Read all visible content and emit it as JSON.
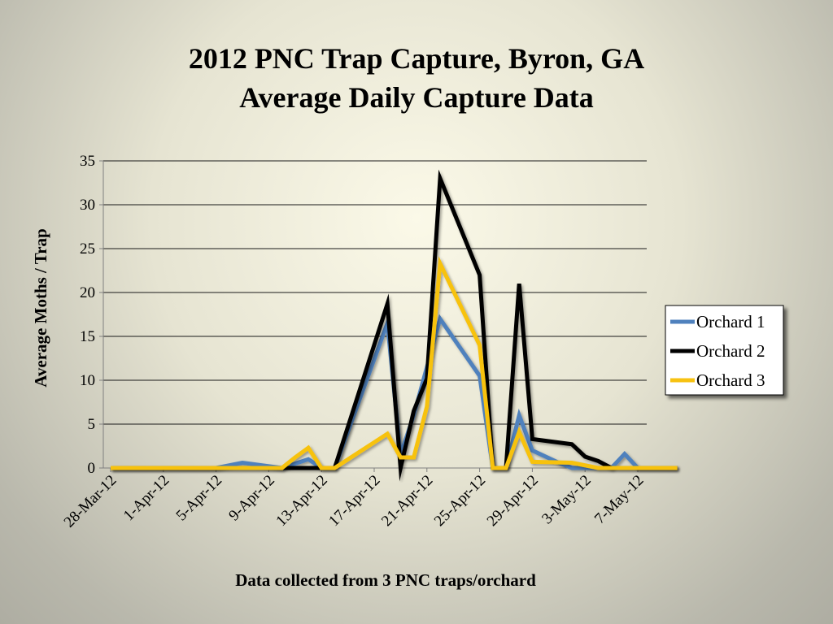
{
  "chart_data": {
    "type": "line",
    "title": "2012 PNC Trap Capture, Byron, GA",
    "subtitle": "Average Daily Capture Data",
    "xlabel": "Data collected from 3 PNC traps/orchard",
    "ylabel": "Average Moths / Trap",
    "ylim": [
      0,
      35
    ],
    "yticks": [
      0,
      5,
      10,
      15,
      20,
      25,
      30,
      35
    ],
    "xlim": [
      "2012-03-28",
      "2012-05-09"
    ],
    "xticks": [
      "28-Mar-12",
      "1-Apr-12",
      "5-Apr-12",
      "9-Apr-12",
      "13-Apr-12",
      "17-Apr-12",
      "21-Apr-12",
      "25-Apr-12",
      "29-Apr-12",
      "3-May-12",
      "7-May-12"
    ],
    "grid": true,
    "legend": "right",
    "series": [
      {
        "name": "Orchard 1",
        "color": "#4f81bd",
        "points": [
          [
            "2012-03-28",
            0
          ],
          [
            "2012-04-02",
            0
          ],
          [
            "2012-04-05",
            0
          ],
          [
            "2012-04-07",
            0.6
          ],
          [
            "2012-04-10",
            0
          ],
          [
            "2012-04-12",
            1.0
          ],
          [
            "2012-04-13",
            0
          ],
          [
            "2012-04-14",
            0
          ],
          [
            "2012-04-18",
            16.5
          ],
          [
            "2012-04-19",
            1.5
          ],
          [
            "2012-04-20",
            6.0
          ],
          [
            "2012-04-22",
            17.0
          ],
          [
            "2012-04-25",
            10.5
          ],
          [
            "2012-04-26",
            0
          ],
          [
            "2012-04-27",
            0
          ],
          [
            "2012-04-28",
            6.0
          ],
          [
            "2012-04-29",
            2.0
          ],
          [
            "2012-05-01",
            0.6
          ],
          [
            "2012-05-02",
            0
          ],
          [
            "2012-05-05",
            0
          ],
          [
            "2012-05-06",
            1.6
          ],
          [
            "2012-05-07",
            0
          ],
          [
            "2012-05-10",
            0
          ]
        ]
      },
      {
        "name": "Orchard 2",
        "color": "#000000",
        "points": [
          [
            "2012-03-28",
            0
          ],
          [
            "2012-04-02",
            0
          ],
          [
            "2012-04-05",
            0
          ],
          [
            "2012-04-10",
            0
          ],
          [
            "2012-04-12",
            0
          ],
          [
            "2012-04-14",
            0
          ],
          [
            "2012-04-18",
            18.7
          ],
          [
            "2012-04-19",
            0
          ],
          [
            "2012-04-20",
            6.5
          ],
          [
            "2012-04-21",
            10.2
          ],
          [
            "2012-04-22",
            33.0
          ],
          [
            "2012-04-25",
            22.0
          ],
          [
            "2012-04-26",
            0
          ],
          [
            "2012-04-27",
            0
          ],
          [
            "2012-04-28",
            21.0
          ],
          [
            "2012-04-29",
            3.3
          ],
          [
            "2012-05-02",
            2.7
          ],
          [
            "2012-05-03",
            1.3
          ],
          [
            "2012-05-04",
            0.8
          ],
          [
            "2012-05-05",
            0
          ],
          [
            "2012-05-06",
            0
          ],
          [
            "2012-05-07",
            0
          ],
          [
            "2012-05-10",
            0
          ]
        ]
      },
      {
        "name": "Orchard 3",
        "color": "#f7c211",
        "points": [
          [
            "2012-03-28",
            0
          ],
          [
            "2012-04-02",
            0
          ],
          [
            "2012-04-05",
            0
          ],
          [
            "2012-04-10",
            0
          ],
          [
            "2012-04-11",
            1.2
          ],
          [
            "2012-04-12",
            2.3
          ],
          [
            "2012-04-13",
            0
          ],
          [
            "2012-04-14",
            0
          ],
          [
            "2012-04-18",
            3.9
          ],
          [
            "2012-04-19",
            1.2
          ],
          [
            "2012-04-20",
            1.2
          ],
          [
            "2012-04-21",
            7.0
          ],
          [
            "2012-04-22",
            23.3
          ],
          [
            "2012-04-25",
            14.0
          ],
          [
            "2012-04-26",
            0
          ],
          [
            "2012-04-27",
            0
          ],
          [
            "2012-04-28",
            4.1
          ],
          [
            "2012-04-29",
            0.7
          ],
          [
            "2012-05-02",
            0.6
          ],
          [
            "2012-05-04",
            0
          ],
          [
            "2012-05-06",
            0
          ],
          [
            "2012-05-10",
            0
          ]
        ]
      }
    ]
  }
}
